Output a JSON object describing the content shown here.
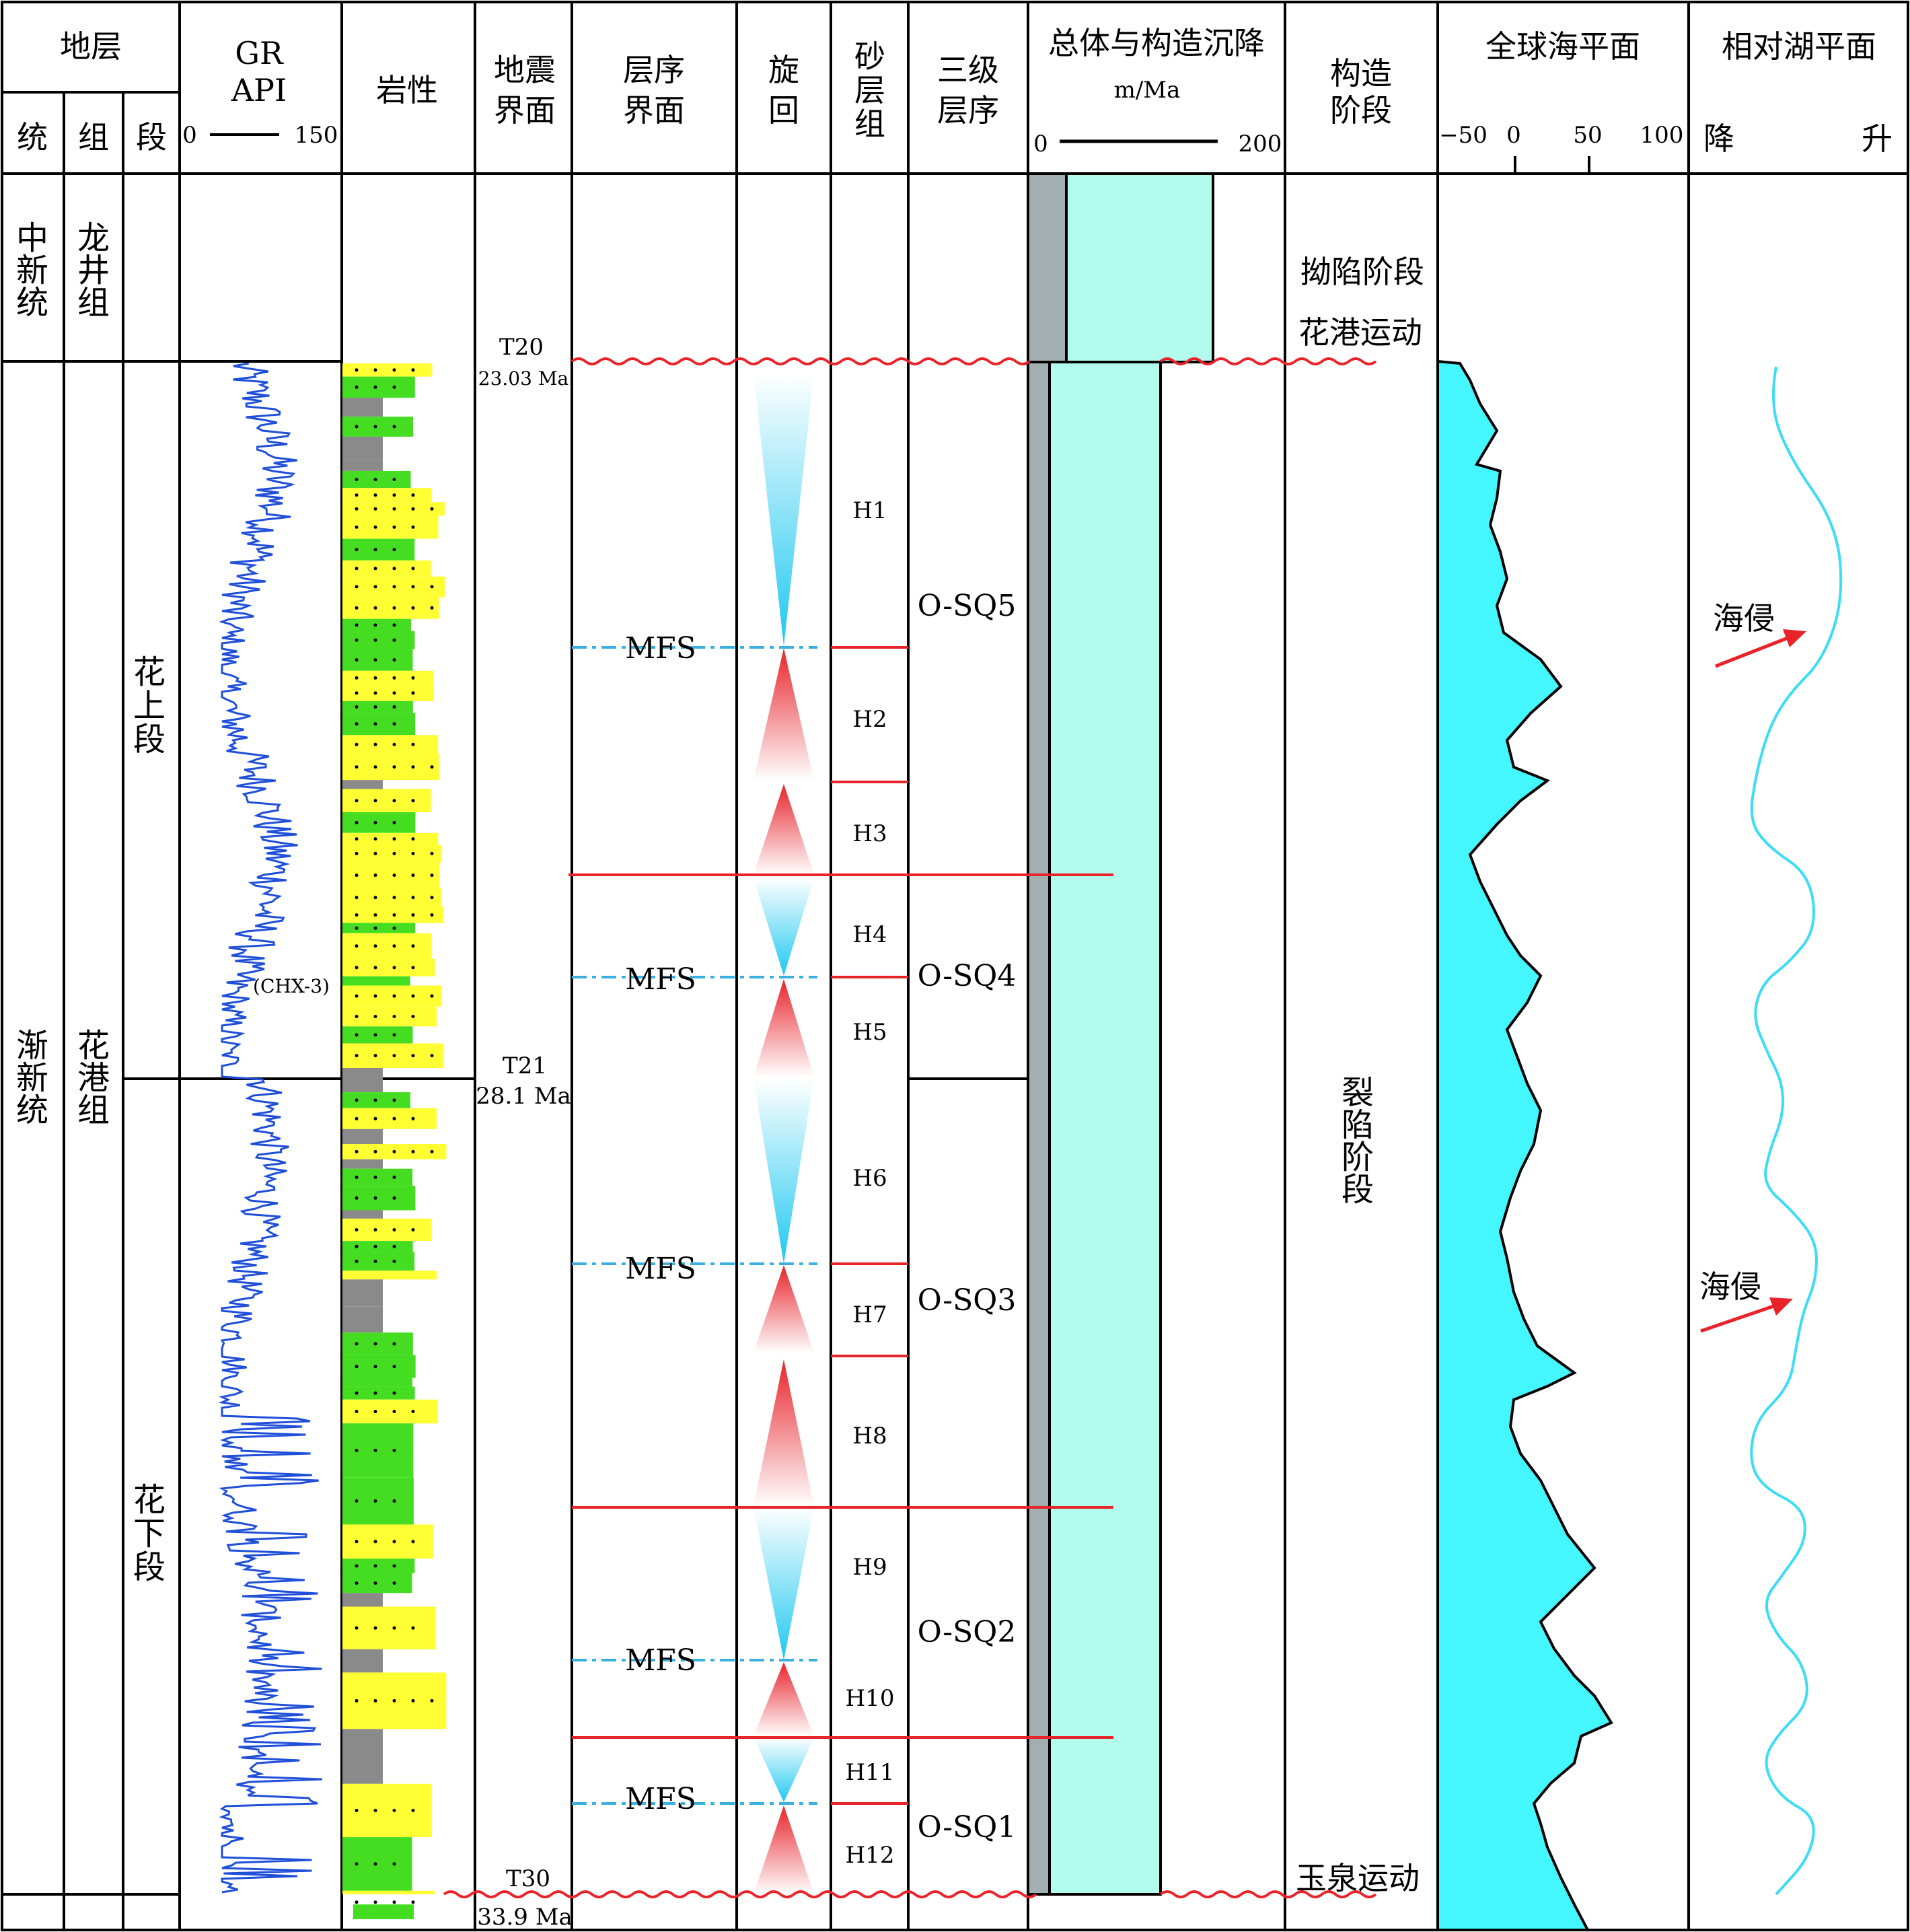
{
  "header": {
    "strata": "地层",
    "series": "统",
    "formation": "组",
    "member": "段",
    "gr_top": "GR",
    "gr_bottom": "API",
    "gr_min": "0",
    "gr_max": "150",
    "lithology": "岩性",
    "seismic_1": "地震",
    "seismic_2": "界面",
    "seq_boundary_1": "层序",
    "seq_boundary_2": "界面",
    "cycle_1": "旋",
    "cycle_2": "回",
    "sand_1": "砂",
    "sand_2": "层",
    "sand_3": "组",
    "third_1": "三级",
    "third_2": "层序",
    "subsidence_title": "总体与构造沉降",
    "subsidence_unit": "m/Ma",
    "sub_min": "0",
    "sub_max": "200",
    "tectonic_1": "构造",
    "tectonic_2": "阶段",
    "global_sea": "全球海平面",
    "sea_ticks": [
      "−50",
      "0",
      "50",
      "100"
    ],
    "lake": "相对湖平面",
    "lake_fall": "降",
    "lake_rise": "升"
  },
  "strata": {
    "upper_series": "中新统",
    "upper_formation": "龙井组",
    "lower_series": "渐新统",
    "lower_formation": "花港组",
    "upper_member": "花上段",
    "lower_member": "花下段"
  },
  "seismic": [
    {
      "name": "T20",
      "age": "23.03 Ma"
    },
    {
      "name": "T21",
      "age": "28.1 Ma"
    },
    {
      "name": "T30",
      "age": "33.9 Ma"
    }
  ],
  "well_label": "(CHX-3)",
  "mfs_label": "MFS",
  "sand_groups": [
    "H1",
    "H2",
    "H3",
    "H4",
    "H5",
    "H6",
    "H7",
    "H8",
    "H9",
    "H10",
    "H11",
    "H12"
  ],
  "sequences": [
    "O-SQ5",
    "O-SQ4",
    "O-SQ3",
    "O-SQ2",
    "O-SQ1"
  ],
  "tectonic": {
    "sag": "拗陷阶段",
    "huagang": "花港运动",
    "rift": "裂陷阶段",
    "yuquan": "玉泉运动"
  },
  "transgression": "海侵",
  "colors": {
    "grid": "#000000",
    "red_line": "#e8232a",
    "mfs_line": "#3ab0e0",
    "gr_curve": "#1f4fd8",
    "sand": "#ffff33",
    "mud_green": "#44dd22",
    "gray": "#8a8a8a",
    "sub_gray": "#a3aeb0",
    "sub_cyan": "#b3fbec",
    "sea_fill": "#44f7ff",
    "lake_curve": "#3ddcf5"
  }
}
